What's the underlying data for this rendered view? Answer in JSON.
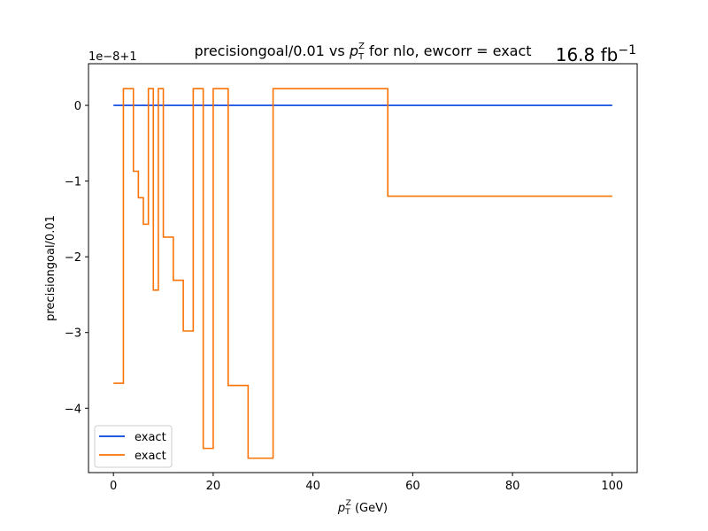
{
  "chart_data": {
    "type": "line",
    "drawstyle": "steps-post",
    "title_main": "precisiongoal/0.01 vs ",
    "title_var": "p",
    "title_sub": "T",
    "title_sup": "Z",
    "title_rest": " for nlo, ewcorr = exact",
    "lumi_main": "16.8 fb",
    "lumi_sup": "−1",
    "xlabel_var": "p",
    "xlabel_sub": "T",
    "xlabel_sup": "Z",
    "xlabel_unit": " (GeV)",
    "ylabel": "precisiongoal/0.01",
    "y_offset_label": "1e−8+1",
    "xlim": [
      -5,
      105
    ],
    "ylim": [
      -4.85,
      0.55
    ],
    "xticks": [
      0,
      20,
      40,
      60,
      80,
      100
    ],
    "xtick_labels": [
      "0",
      "20",
      "40",
      "60",
      "80",
      "100"
    ],
    "yticks": [
      0,
      -1,
      -2,
      -3,
      -4
    ],
    "ytick_labels": [
      "0",
      "−1",
      "−2",
      "−3",
      "−4"
    ],
    "grid": false,
    "legend_position": "lower-left",
    "series": [
      {
        "name": "exact",
        "color": "#0343df",
        "x": [
          0,
          100
        ],
        "y": [
          0,
          0
        ]
      },
      {
        "name": "exact",
        "color": "#f97306",
        "x": [
          0,
          2,
          4,
          5,
          6,
          7,
          8,
          9,
          10,
          11,
          12,
          14,
          16,
          18,
          20,
          23,
          27,
          32,
          55,
          100
        ],
        "y": [
          -3.67,
          0.22,
          -0.87,
          -1.22,
          -1.57,
          0.22,
          -2.44,
          0.22,
          -1.74,
          -1.74,
          -2.31,
          -2.98,
          0.22,
          -4.53,
          0.22,
          -3.7,
          -4.66,
          0.22,
          -1.2,
          -1.2
        ]
      }
    ]
  }
}
